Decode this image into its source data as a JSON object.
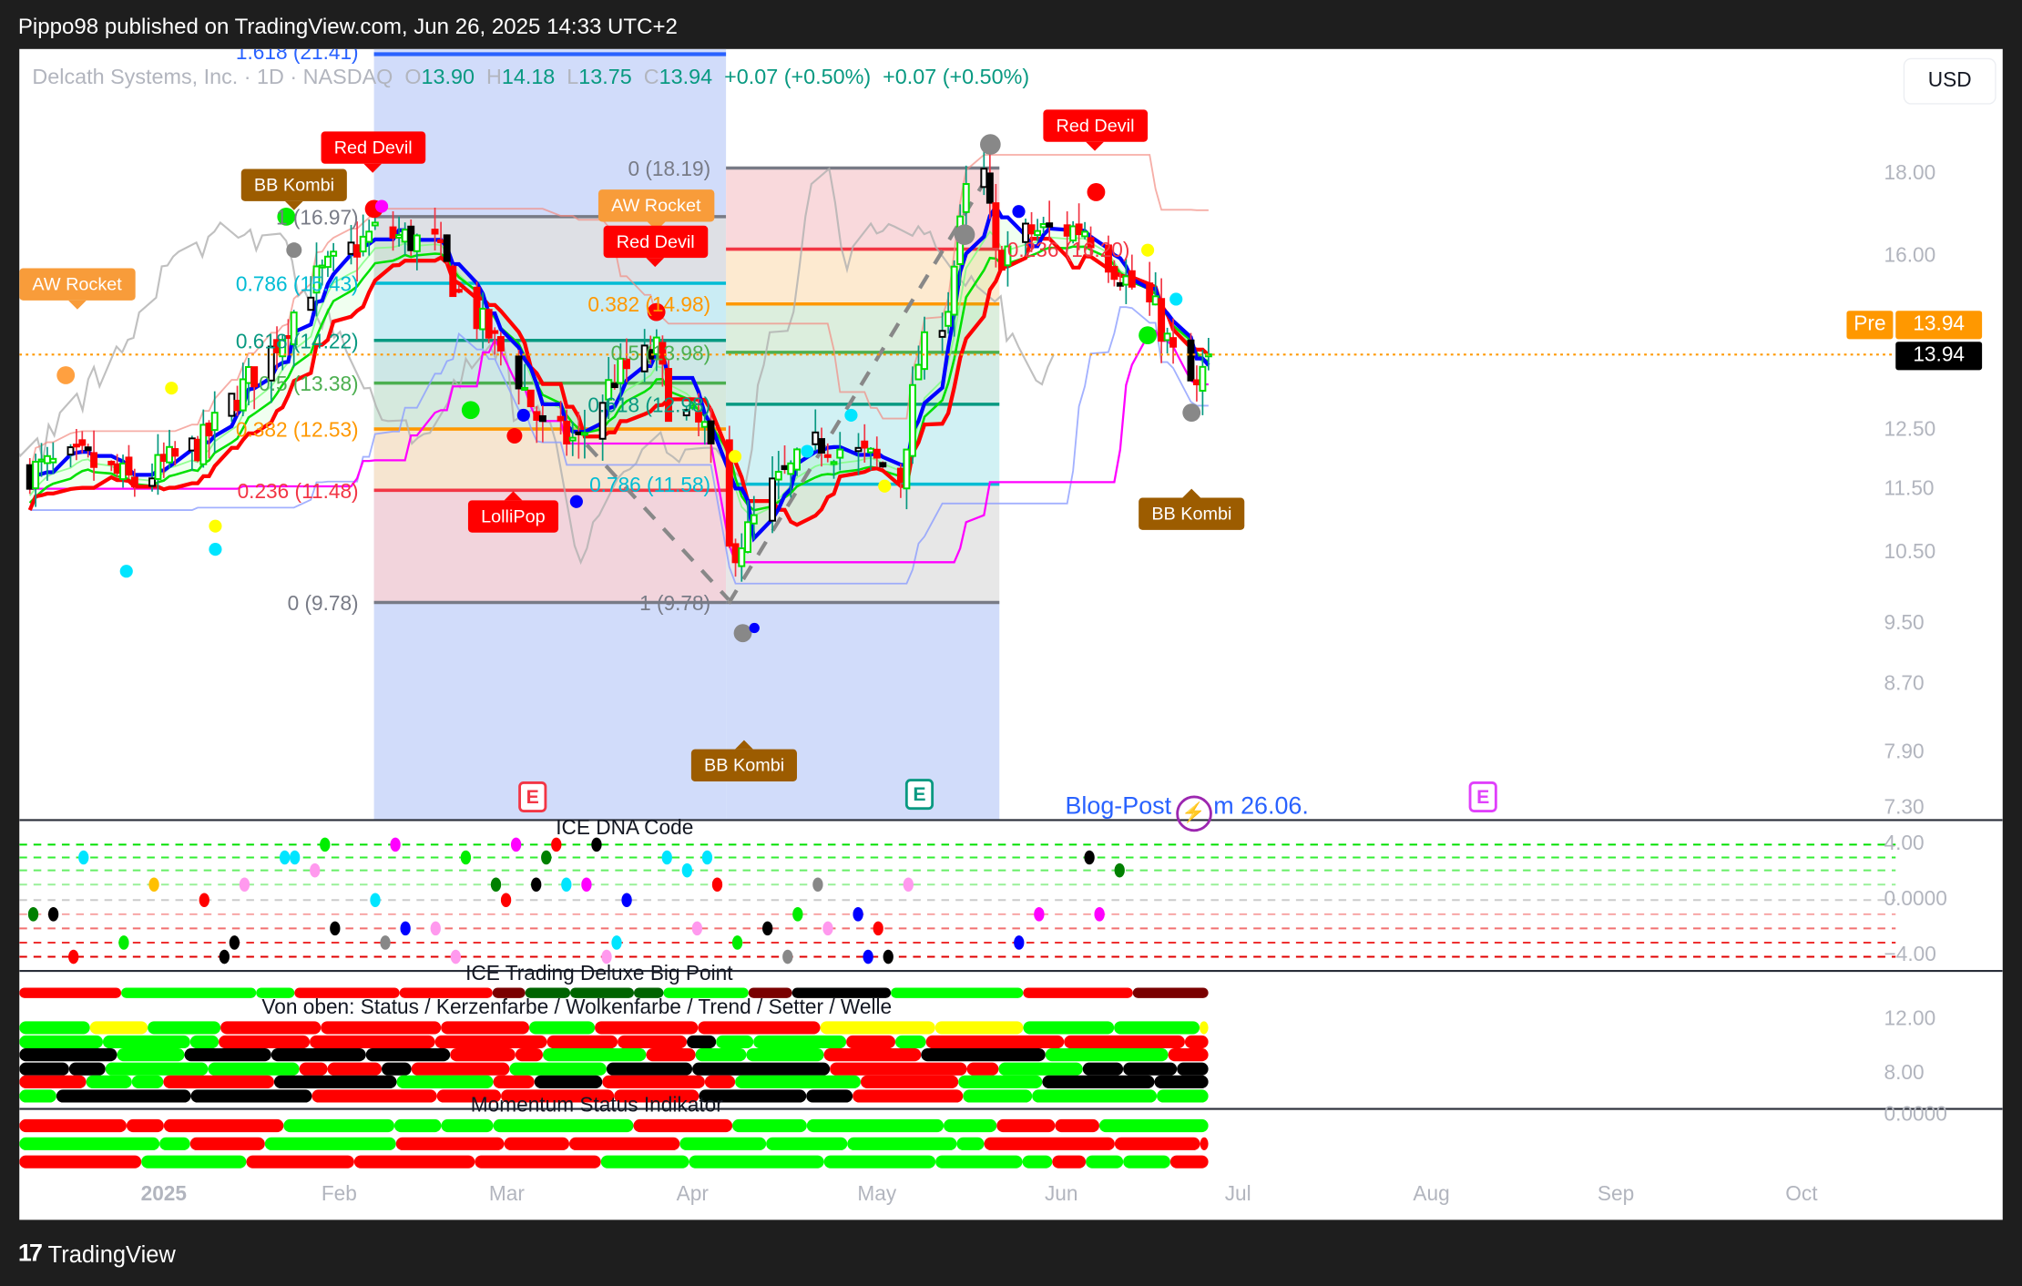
{
  "header": {
    "published": "Pippo98 published on TradingView.com, Jun 26, 2025 14:33 UTC+2"
  },
  "footer": {
    "brand": "TradingView"
  },
  "legend": {
    "symbol": "Delcath Systems, Inc. · 1D · NASDAQ",
    "o_label": "O",
    "o": "13.90",
    "h_label": "H",
    "h": "14.18",
    "l_label": "L",
    "l": "13.75",
    "c_label": "C",
    "c": "13.94",
    "change1": "+0.07 (+0.50%)",
    "change2": "+0.07 (+0.50%)"
  },
  "currency_button": "USD",
  "price_labels": {
    "pre_label": "Pre",
    "pre_value": "13.94",
    "last_value": "13.94"
  },
  "signals": [
    {
      "label": "AW Rocket",
      "color": "#f89c3a"
    },
    {
      "label": "BB Kombi",
      "color": "#9c5c00"
    },
    {
      "label": "Red Devil",
      "color": "#ff0000"
    },
    {
      "label": "AW Rocket",
      "color": "#f89c3a"
    },
    {
      "label": "Red Devil",
      "color": "#ff0000"
    },
    {
      "label": "Red Devil",
      "color": "#ff0000"
    },
    {
      "label": "LolliPop",
      "color": "#ff0000"
    },
    {
      "label": "BB Kombi",
      "color": "#9c5c00"
    },
    {
      "label": "BB Kombi",
      "color": "#9c5c00"
    }
  ],
  "earnings": [
    {
      "label": "E",
      "color": "#f23645"
    },
    {
      "label": "E",
      "color": "#089981"
    },
    {
      "label": "E",
      "color": "#e040fb"
    }
  ],
  "blog_post": {
    "before": "Blog-Post",
    "after": "m 26.06.",
    "icon": "lightning-icon",
    "icon_color": "#9c27b0"
  },
  "panes": {
    "dna": {
      "title": "ICE DNA Code",
      "axis": [
        "4.00",
        "0.0000",
        "−4.00"
      ]
    },
    "bigpoint": {
      "title": "ICE Trading Deluxe Big Point",
      "subtitle": "Von oben: Status / Kerzenfarbe / Wolkenfarbe / Trend / Setter / Welle",
      "axis": [
        "12.00",
        "8.00"
      ]
    },
    "momentum": {
      "title": "Momentum Status Indikator",
      "axis": [
        "0.0000"
      ]
    }
  },
  "colors": {
    "up": "#00ff00",
    "down": "#ff0000",
    "neutral": "#000000",
    "accent": "#ff9800",
    "blue_line": "#0000ff",
    "time_range": "#d1dcfa"
  },
  "chart_data": {
    "type": "candlestick",
    "symbol": "Delcath Systems, Inc.",
    "interval": "1D",
    "exchange": "NASDAQ",
    "y_scale": "log",
    "ylim": [
      7.3,
      21.41
    ],
    "y_ticks": [
      "18.00",
      "16.00",
      "12.50",
      "11.50",
      "10.50",
      "9.50",
      "8.70",
      "7.90",
      "7.30"
    ],
    "x_ticks": [
      "2025",
      "Feb",
      "Mar",
      "Apr",
      "May",
      "Jun",
      "Jul",
      "Aug",
      "Sep",
      "Oct"
    ],
    "last": {
      "open": 13.9,
      "high": 14.18,
      "low": 13.75,
      "close": 13.94
    },
    "close_approx": [
      [
        "2024-12-09",
        11.8
      ],
      [
        "2024-12-18",
        12.0
      ],
      [
        "2024-12-27",
        11.6
      ],
      [
        "2025-01-08",
        12.3
      ],
      [
        "2025-01-20",
        14.0
      ],
      [
        "2025-01-27",
        15.4
      ],
      [
        "2025-02-07",
        16.6
      ],
      [
        "2025-02-17",
        16.3
      ],
      [
        "2025-02-21",
        15.2
      ],
      [
        "2025-03-03",
        13.5
      ],
      [
        "2025-03-07",
        12.5
      ],
      [
        "2025-03-13",
        12.3
      ],
      [
        "2025-03-19",
        13.5
      ],
      [
        "2025-03-26",
        14.0
      ],
      [
        "2025-03-28",
        13.0
      ],
      [
        "2025-04-03",
        12.5
      ],
      [
        "2025-04-07",
        10.5
      ],
      [
        "2025-04-10",
        10.8
      ],
      [
        "2025-04-14",
        11.5
      ],
      [
        "2025-04-22",
        12.3
      ],
      [
        "2025-04-30",
        12.0
      ],
      [
        "2025-05-05",
        11.7
      ],
      [
        "2025-05-08",
        13.8
      ],
      [
        "2025-05-13",
        15.0
      ],
      [
        "2025-05-16",
        17.5
      ],
      [
        "2025-05-19",
        18.0
      ],
      [
        "2025-05-21",
        16.0
      ],
      [
        "2025-05-27",
        16.6
      ],
      [
        "2025-06-05",
        16.7
      ],
      [
        "2025-06-12",
        15.5
      ],
      [
        "2025-06-17",
        14.8
      ],
      [
        "2025-06-20",
        13.9
      ],
      [
        "2025-06-24",
        13.2
      ],
      [
        "2025-06-26",
        13.94
      ]
    ],
    "fib_retracements": [
      {
        "levels": [
          {
            "ratio": "1.618",
            "price": 21.41,
            "color": "#2962ff"
          },
          {
            "ratio": "1",
            "price": 16.97,
            "color": "#787b86"
          },
          {
            "ratio": "0.786",
            "price": 15.43,
            "color": "#00bcd4"
          },
          {
            "ratio": "0.618",
            "price": 14.22,
            "color": "#089981"
          },
          {
            "ratio": "0.5",
            "price": 13.38,
            "color": "#4caf50"
          },
          {
            "ratio": "0.382",
            "price": 12.53,
            "color": "#ff9800"
          },
          {
            "ratio": "0.236",
            "price": 11.48,
            "color": "#f23645"
          },
          {
            "ratio": "0",
            "price": 9.78,
            "color": "#787b86"
          }
        ]
      },
      {
        "levels": [
          {
            "ratio": "0",
            "price": 18.19,
            "color": "#787b86"
          },
          {
            "ratio": "0.236",
            "price": 16.2,
            "color": "#f23645"
          },
          {
            "ratio": "0.382",
            "price": 14.98,
            "color": "#ff9800"
          },
          {
            "ratio": "0.5",
            "price": 13.98,
            "color": "#4caf50"
          },
          {
            "ratio": "0.618",
            "price": 12.98,
            "color": "#089981"
          },
          {
            "ratio": "0.786",
            "price": 11.58,
            "color": "#00bcd4"
          },
          {
            "ratio": "1",
            "price": 9.78,
            "color": "#787b86"
          }
        ]
      }
    ]
  }
}
